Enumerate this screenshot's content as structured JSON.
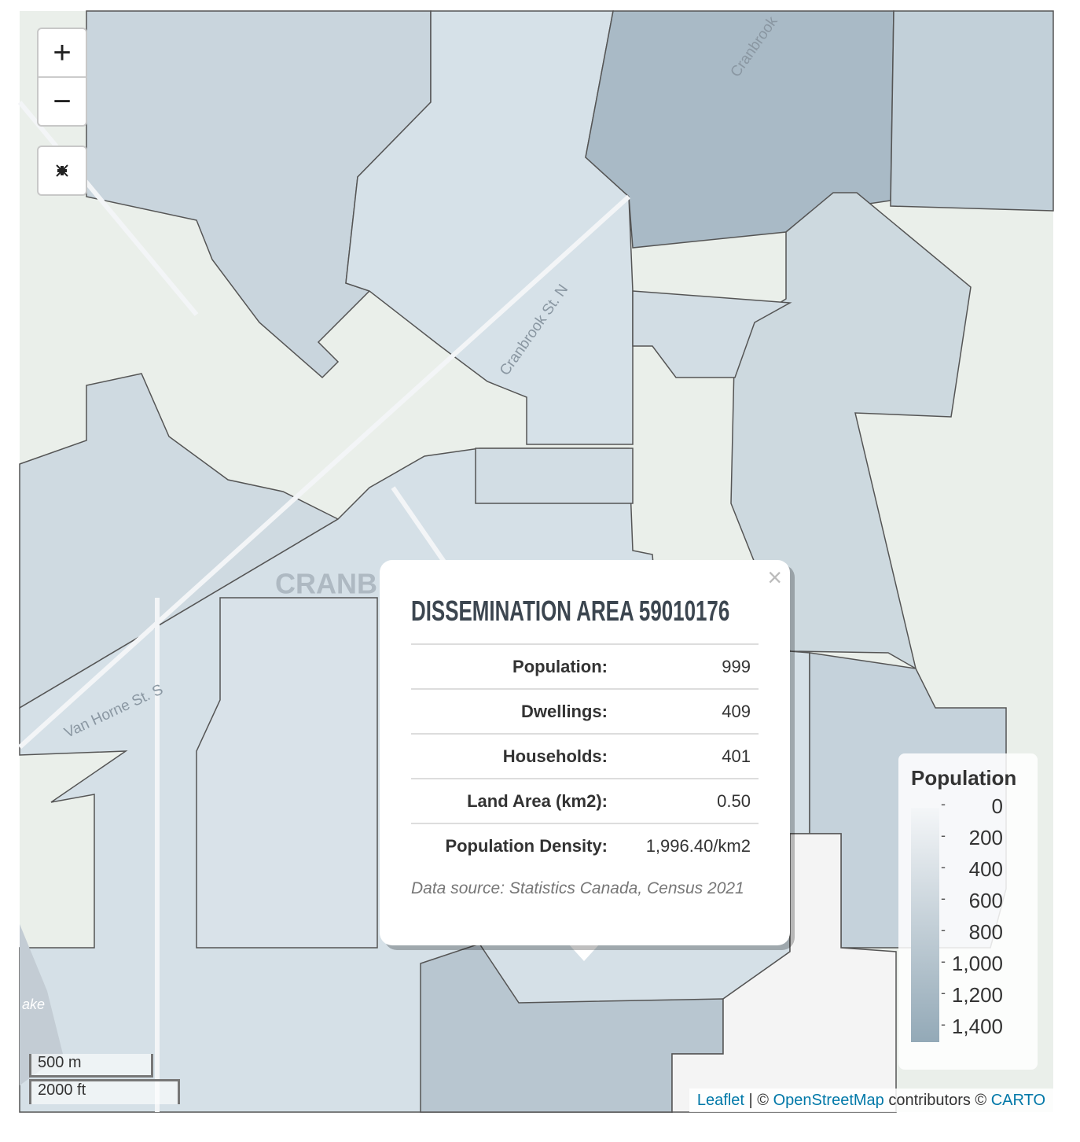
{
  "zoom_controls": {
    "zoom_in": "+",
    "zoom_out": "−"
  },
  "map_labels": {
    "town": "CRANB",
    "street_north": "Cranbrook St. N",
    "street_south": "Van Horne St. S",
    "street_top": "Cranbrook",
    "lake": "ake"
  },
  "popup": {
    "close": "×",
    "title": "DISSEMINATION AREA 59010176",
    "rows": [
      [
        "Population:",
        "999"
      ],
      [
        "Dwellings:",
        "409"
      ],
      [
        "Households:",
        "401"
      ],
      [
        "Land Area (km2):",
        "0.50"
      ],
      [
        "Population Density:",
        "1,996.40/km2"
      ]
    ],
    "source": "Data source: Statistics Canada, Census 2021"
  },
  "legend": {
    "title": "Population",
    "labels": [
      "0",
      "200",
      "400",
      "600",
      "800",
      "1,000",
      "1,200",
      "1,400"
    ]
  },
  "scale": {
    "metric": "500 m",
    "imperial": "2000 ft"
  },
  "attribution": {
    "leaflet": "Leaflet",
    "sep": "| ©",
    "osm": "OpenStreetMap",
    "contrib": "contributors ©",
    "carto": "CARTO"
  }
}
